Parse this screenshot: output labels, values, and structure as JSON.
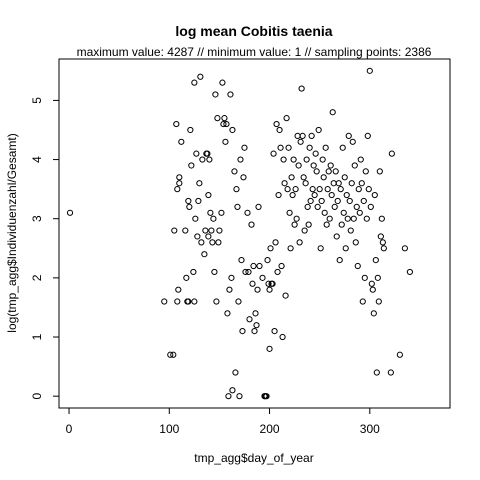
{
  "chart_data": {
    "type": "scatter",
    "title": "log mean Cobitis taenia",
    "subtitle": "maximum value: 4287  //  minimum value: 1  // sampling points: 2386",
    "xlabel": "tmp_agg$day_of_year",
    "ylabel": "log(tmp_agg$Individuenzahl/Gesamt)",
    "xlim": [
      -10,
      380
    ],
    "ylim": [
      -0.2,
      5.7
    ],
    "xticks": [
      0,
      100,
      200,
      300
    ],
    "yticks": [
      0,
      1,
      2,
      3,
      4,
      5
    ],
    "grid": false,
    "marker": "open-circle",
    "points": [
      [
        1,
        3.1
      ],
      [
        95,
        1.6
      ],
      [
        101,
        0.7
      ],
      [
        104,
        0.7
      ],
      [
        105,
        2.8
      ],
      [
        107,
        4.6
      ],
      [
        108,
        1.6
      ],
      [
        108,
        3.5
      ],
      [
        109,
        1.8
      ],
      [
        110,
        3.6
      ],
      [
        110,
        3.7
      ],
      [
        112,
        4.3
      ],
      [
        116,
        2.8
      ],
      [
        117,
        2.0
      ],
      [
        118,
        1.6
      ],
      [
        119,
        1.6
      ],
      [
        119,
        3.3
      ],
      [
        120,
        3.2
      ],
      [
        121,
        4.5
      ],
      [
        122,
        3.9
      ],
      [
        124,
        2.1
      ],
      [
        125,
        5.3
      ],
      [
        125,
        1.6
      ],
      [
        126,
        3.0
      ],
      [
        127,
        4.1
      ],
      [
        128,
        2.7
      ],
      [
        129,
        3.3
      ],
      [
        130,
        3.6
      ],
      [
        131,
        5.4
      ],
      [
        132,
        2.6
      ],
      [
        133,
        4.0
      ],
      [
        135,
        2.4
      ],
      [
        136,
        2.8
      ],
      [
        137,
        4.1
      ],
      [
        138,
        4.1
      ],
      [
        139,
        3.4
      ],
      [
        139,
        2.7
      ],
      [
        140,
        4.0
      ],
      [
        141,
        3.1
      ],
      [
        142,
        2.8
      ],
      [
        143,
        2.6
      ],
      [
        144,
        3.0
      ],
      [
        145,
        2.1
      ],
      [
        146,
        5.1
      ],
      [
        147,
        1.6
      ],
      [
        148,
        4.7
      ],
      [
        149,
        2.6
      ],
      [
        150,
        2.8
      ],
      [
        152,
        3.1
      ],
      [
        153,
        5.3
      ],
      [
        154,
        4.6
      ],
      [
        155,
        4.7
      ],
      [
        156,
        4.3
      ],
      [
        157,
        4.6
      ],
      [
        158,
        1.4
      ],
      [
        159,
        0.0
      ],
      [
        160,
        1.8
      ],
      [
        161,
        5.1
      ],
      [
        162,
        2.0
      ],
      [
        163,
        4.5
      ],
      [
        163,
        0.1
      ],
      [
        165,
        3.8
      ],
      [
        166,
        0.4
      ],
      [
        167,
        3.5
      ],
      [
        168,
        3.2
      ],
      [
        169,
        1.6
      ],
      [
        170,
        0.0
      ],
      [
        171,
        4.0
      ],
      [
        172,
        2.3
      ],
      [
        173,
        1.1
      ],
      [
        174,
        3.7
      ],
      [
        175,
        4.2
      ],
      [
        176,
        2.1
      ],
      [
        178,
        3.1
      ],
      [
        179,
        2.1
      ],
      [
        180,
        1.3
      ],
      [
        182,
        2.9
      ],
      [
        183,
        1.9
      ],
      [
        184,
        2.2
      ],
      [
        185,
        1.1
      ],
      [
        186,
        1.4
      ],
      [
        187,
        1.2
      ],
      [
        188,
        1.8
      ],
      [
        189,
        3.2
      ],
      [
        190,
        2.2
      ],
      [
        193,
        2.0
      ],
      [
        195,
        0.0
      ],
      [
        195,
        0.0
      ],
      [
        196,
        0.0
      ],
      [
        197,
        0.0
      ],
      [
        198,
        2.3
      ],
      [
        199,
        1.9
      ],
      [
        200,
        1.8
      ],
      [
        200,
        0.8
      ],
      [
        201,
        2.5
      ],
      [
        202,
        1.9
      ],
      [
        203,
        1.9
      ],
      [
        204,
        4.1
      ],
      [
        205,
        1.1
      ],
      [
        206,
        2.6
      ],
      [
        207,
        4.6
      ],
      [
        208,
        2.1
      ],
      [
        209,
        3.4
      ],
      [
        210,
        4.5
      ],
      [
        211,
        4.2
      ],
      [
        212,
        2.2
      ],
      [
        213,
        1.0
      ],
      [
        214,
        4.0
      ],
      [
        215,
        3.6
      ],
      [
        216,
        1.7
      ],
      [
        217,
        4.7
      ],
      [
        218,
        3.5
      ],
      [
        219,
        4.2
      ],
      [
        220,
        3.1
      ],
      [
        221,
        2.5
      ],
      [
        222,
        3.7
      ],
      [
        223,
        3.4
      ],
      [
        224,
        4.0
      ],
      [
        225,
        2.9
      ],
      [
        226,
        3.5
      ],
      [
        227,
        3.0
      ],
      [
        228,
        4.4
      ],
      [
        229,
        3.9
      ],
      [
        230,
        2.6
      ],
      [
        231,
        4.3
      ],
      [
        232,
        5.2
      ],
      [
        233,
        4.4
      ],
      [
        234,
        3.7
      ],
      [
        235,
        2.8
      ],
      [
        236,
        3.6
      ],
      [
        237,
        4.0
      ],
      [
        238,
        3.2
      ],
      [
        239,
        2.9
      ],
      [
        240,
        4.2
      ],
      [
        241,
        3.3
      ],
      [
        242,
        4.4
      ],
      [
        243,
        3.5
      ],
      [
        244,
        3.9
      ],
      [
        245,
        3.4
      ],
      [
        246,
        4.1
      ],
      [
        247,
        3.8
      ],
      [
        248,
        3.2
      ],
      [
        249,
        4.5
      ],
      [
        250,
        3.5
      ],
      [
        251,
        2.5
      ],
      [
        252,
        3.3
      ],
      [
        253,
        4.0
      ],
      [
        254,
        3.7
      ],
      [
        255,
        3.1
      ],
      [
        256,
        4.2
      ],
      [
        257,
        2.9
      ],
      [
        258,
        3.5
      ],
      [
        259,
        3.8
      ],
      [
        260,
        3.0
      ],
      [
        261,
        3.9
      ],
      [
        262,
        3.4
      ],
      [
        263,
        4.8
      ],
      [
        264,
        3.6
      ],
      [
        265,
        3.2
      ],
      [
        266,
        3.8
      ],
      [
        267,
        2.7
      ],
      [
        268,
        3.3
      ],
      [
        269,
        3.6
      ],
      [
        270,
        2.3
      ],
      [
        271,
        3.5
      ],
      [
        272,
        2.9
      ],
      [
        273,
        4.2
      ],
      [
        274,
        3.1
      ],
      [
        275,
        3.7
      ],
      [
        276,
        2.5
      ],
      [
        277,
        3.4
      ],
      [
        278,
        3.0
      ],
      [
        279,
        4.4
      ],
      [
        280,
        3.3
      ],
      [
        281,
        2.8
      ],
      [
        282,
        3.6
      ],
      [
        283,
        4.3
      ],
      [
        284,
        3.0
      ],
      [
        285,
        3.9
      ],
      [
        286,
        2.6
      ],
      [
        287,
        3.2
      ],
      [
        288,
        2.2
      ],
      [
        289,
        3.5
      ],
      [
        290,
        3.1
      ],
      [
        291,
        4.0
      ],
      [
        292,
        3.6
      ],
      [
        293,
        1.6
      ],
      [
        294,
        3.3
      ],
      [
        295,
        2.0
      ],
      [
        296,
        3.8
      ],
      [
        297,
        3.0
      ],
      [
        298,
        4.4
      ],
      [
        299,
        3.5
      ],
      [
        300,
        5.5
      ],
      [
        301,
        3.2
      ],
      [
        302,
        1.9
      ],
      [
        303,
        1.8
      ],
      [
        304,
        1.4
      ],
      [
        305,
        3.4
      ],
      [
        306,
        2.3
      ],
      [
        307,
        0.4
      ],
      [
        308,
        2.0
      ],
      [
        309,
        1.6
      ],
      [
        310,
        3.8
      ],
      [
        311,
        2.7
      ],
      [
        312,
        3.0
      ],
      [
        313,
        2.6
      ],
      [
        314,
        2.5
      ],
      [
        321,
        0.4
      ],
      [
        322,
        4.1
      ],
      [
        330,
        0.7
      ],
      [
        335,
        2.5
      ],
      [
        340,
        2.1
      ]
    ]
  }
}
